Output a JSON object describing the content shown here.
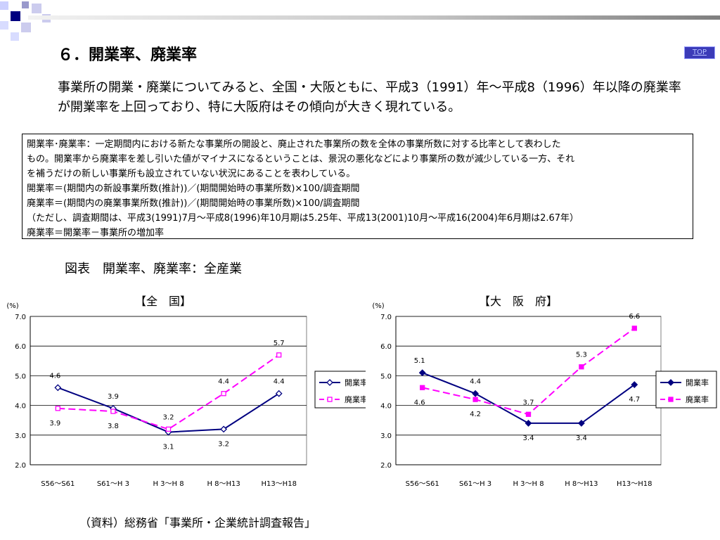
{
  "header": {
    "title": "６．開業率、廃業率",
    "top_link": "TOP"
  },
  "lead_text": "事業所の開業・廃業についてみると、全国・大阪ともに、平成3（1991）年～平成8（1996）年以降の廃業率が開業率を上回っており、特に大阪府はその傾向が大きく現れている。",
  "definition_box": {
    "lines": [
      "開業率･廃業率：一定期間内における新たな事業所の開設と、廃止された事業所の数を全体の事業所数に対する比率として表わした",
      "もの。開業率から廃業率を差し引いた値がマイナスになるということは、景況の悪化などにより事業所の数が減少している一方、それ",
      "を補うだけの新しい事業所も設立されていない状況にあることを表わしている。",
      "開業率＝(期間内の新設事業所数(推計))／(期間開始時の事業所数)×100/調査期間",
      "廃業率＝(期間内の廃業事業所数(推計))／(期間開始時の事業所数)×100/調査期間",
      "（ただし、調査期間は、平成3(1991)7月～平成8(1996)年10月期は5.25年、平成13(2001)10月～平成16(2004)年6月期は2.67年）",
      "廃業率＝開業率－事業所の増加率"
    ]
  },
  "figure_title": "図表　開業率、廃業率：全産業",
  "source_text": "（資料）総務省「事業所・企業統計調査報告」",
  "colors": {
    "open_rate": "#000080",
    "close_rate": "#ff00ff",
    "plot_background": "#ffffff",
    "gridline": "#000000"
  },
  "chart_data": [
    {
      "type": "line",
      "title": "【全　国】",
      "ylabel": "(%)",
      "ylim": [
        2.0,
        7.0
      ],
      "yticks": [
        "7.0",
        "6.0",
        "5.0",
        "4.0",
        "3.0",
        "2.0"
      ],
      "categories": [
        "S56～S61",
        "S61～H 3",
        "H 3～H 8",
        "H 8～H13",
        "H13～H18"
      ],
      "grid": true,
      "legend_position": "right",
      "series": [
        {
          "name": "開業率",
          "values": [
            4.6,
            3.9,
            3.1,
            3.2,
            4.4
          ],
          "labels": [
            "4.6",
            "3.9",
            "3.1",
            "3.2",
            "4.4"
          ],
          "marker": "diamond-open",
          "line": "solid"
        },
        {
          "name": "廃業率",
          "values": [
            3.9,
            3.8,
            3.2,
            4.4,
            5.7
          ],
          "labels": [
            "3.9",
            "3.8",
            "3.2",
            "4.4",
            "5.7"
          ],
          "marker": "square-open",
          "line": "dashed"
        }
      ]
    },
    {
      "type": "line",
      "title": "【大　阪　府】",
      "ylabel": "(%)",
      "ylim": [
        2.0,
        7.0
      ],
      "yticks": [
        "7.0",
        "6.0",
        "5.0",
        "4.0",
        "3.0",
        "2.0"
      ],
      "categories": [
        "S56～S61",
        "S61～H 3",
        "H 3～H 8",
        "H 8～H13",
        "H13～H18"
      ],
      "grid": true,
      "legend_position": "right",
      "series": [
        {
          "name": "開業率",
          "values": [
            5.1,
            4.4,
            3.4,
            3.4,
            4.7
          ],
          "labels": [
            "5.1",
            "4.4",
            "3.4",
            "3.4",
            "4.7"
          ],
          "marker": "diamond-filled",
          "line": "solid"
        },
        {
          "name": "廃業率",
          "values": [
            4.6,
            4.2,
            3.7,
            5.3,
            6.6
          ],
          "labels": [
            "4.6",
            "4.2",
            "3.7",
            "5.3",
            "6.6"
          ],
          "marker": "square-filled",
          "line": "dashed"
        }
      ]
    }
  ]
}
